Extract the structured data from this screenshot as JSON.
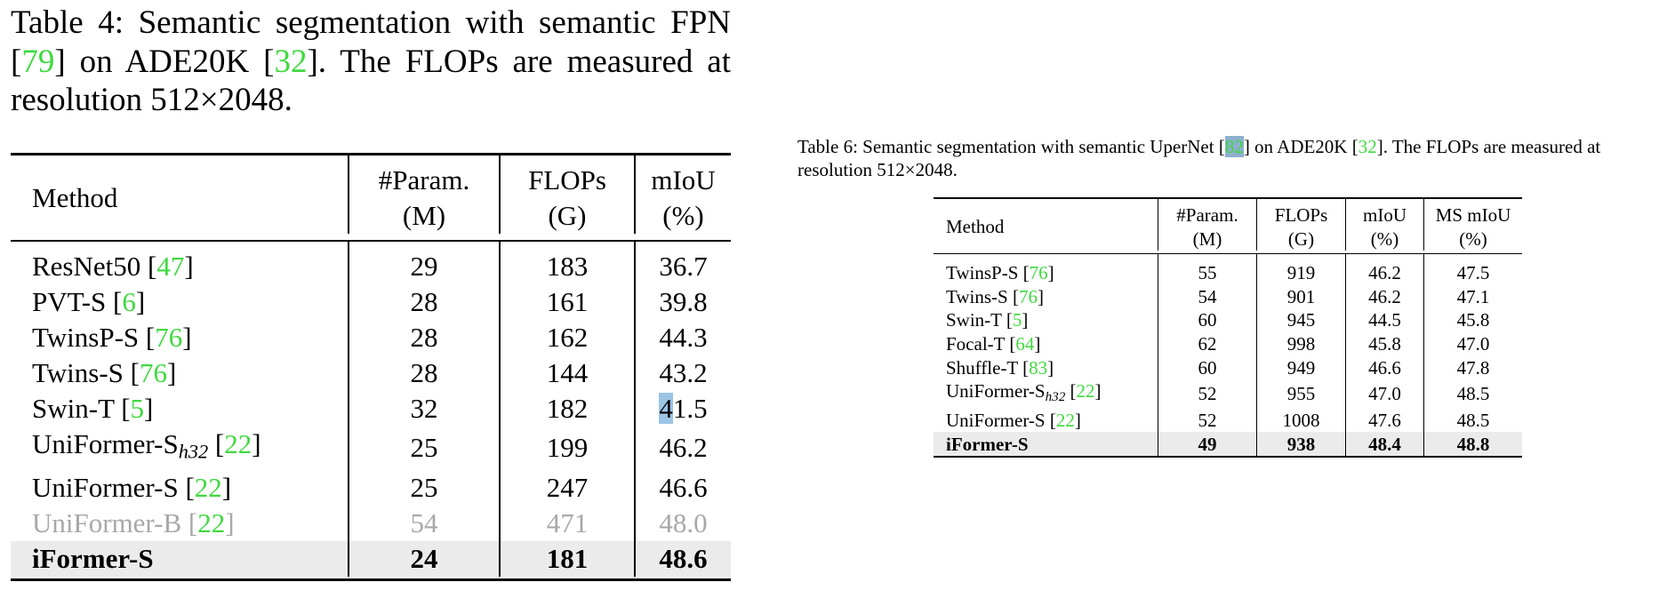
{
  "table4": {
    "caption_parts": {
      "prefix": "Table 4:  Semantic segmentation with semantic FPN [",
      "ref1": "79",
      "mid1": "] on ADE20K [",
      "ref2": "32",
      "suffix": "]. The FLOPs are measured at resolution 512×2048."
    },
    "headers": {
      "method": "Method",
      "param_1": "#Param.",
      "param_2": "(M)",
      "flops_1": "FLOPs",
      "flops_2": "(G)",
      "miou_1": "mIoU",
      "miou_2": "(%)"
    },
    "rows": [
      {
        "name": "ResNet50 [",
        "ref": "47",
        "close": "]",
        "param": "29",
        "flops": "183",
        "miou": "36.7"
      },
      {
        "name": "PVT-S [",
        "ref": "6",
        "close": "]",
        "param": "28",
        "flops": "161",
        "miou": "39.8"
      },
      {
        "name": "TwinsP-S [",
        "ref": "76",
        "close": "]",
        "param": "28",
        "flops": "162",
        "miou": "44.3"
      },
      {
        "name": "Twins-S [",
        "ref": "76",
        "close": "]",
        "param": "28",
        "flops": "144",
        "miou": "43.2"
      },
      {
        "name": "Swin-T [",
        "ref": "5",
        "close": "]",
        "param": "32",
        "flops": "182",
        "miou_hl": "4",
        "miou_rest": "1.5"
      },
      {
        "name": "UniFormer-S",
        "sub": "h32",
        "name2": " [",
        "ref": "22",
        "close": "]",
        "param": "25",
        "flops": "199",
        "miou": "46.2"
      },
      {
        "name": "UniFormer-S [",
        "ref": "22",
        "close": "]",
        "param": "25",
        "flops": "247",
        "miou": "46.6"
      },
      {
        "name": "UniFormer-B [",
        "ref": "22",
        "close": "]",
        "param": "54",
        "flops": "471",
        "miou": "48.0"
      },
      {
        "name": "iFormer-S",
        "param": "24",
        "flops": "181",
        "miou": "48.6"
      }
    ]
  },
  "table6": {
    "caption_parts": {
      "prefix": "Table 6: Semantic segmentation with semantic UperNet [",
      "ref1": "82",
      "mid1": "] on ADE20K [",
      "ref2": "32",
      "suffix": "].  The FLOPs are measured at resolution 512×2048."
    },
    "headers": {
      "method": "Method",
      "param_1": "#Param.",
      "param_2": "(M)",
      "flops_1": "FLOPs",
      "flops_2": "(G)",
      "miou_1": "mIoU",
      "miou_2": "(%)",
      "ms_1": "MS mIoU",
      "ms_2": "(%)"
    },
    "rows": [
      {
        "name": "TwinsP-S [",
        "ref": "76",
        "close": "]",
        "param": "55",
        "flops": "919",
        "miou": "46.2",
        "ms": "47.5"
      },
      {
        "name": "Twins-S [",
        "ref": "76",
        "close": "]",
        "param": "54",
        "flops": "901",
        "miou": "46.2",
        "ms": "47.1"
      },
      {
        "name": "Swin-T [",
        "ref": "5",
        "close": "]",
        "param": "60",
        "flops": "945",
        "miou": "44.5",
        "ms": "45.8"
      },
      {
        "name": "Focal-T [",
        "ref": "64",
        "close": "]",
        "param": "62",
        "flops": "998",
        "miou": "45.8",
        "ms": "47.0"
      },
      {
        "name": "Shuffle-T [",
        "ref": "83",
        "close": "]",
        "param": "60",
        "flops": "949",
        "miou": "46.6",
        "ms": "47.8"
      },
      {
        "name": "UniFormer-S",
        "sub": "h32",
        "name2": " [",
        "ref": "22",
        "close": "]",
        "param": "52",
        "flops": "955",
        "miou": "47.0",
        "ms": "48.5"
      },
      {
        "name": "UniFormer-S [",
        "ref": "22",
        "close": "]",
        "param": "52",
        "flops": "1008",
        "miou": "47.6",
        "ms": "48.5"
      },
      {
        "name": "iFormer-S",
        "param": "49",
        "flops": "938",
        "miou": "48.4",
        "ms": "48.8"
      }
    ]
  },
  "colors": {
    "citation": "#3fd93f",
    "highlight": "#9cc4e4",
    "muted": "#a8a8a8",
    "best_row_bg": "#ebebeb"
  }
}
